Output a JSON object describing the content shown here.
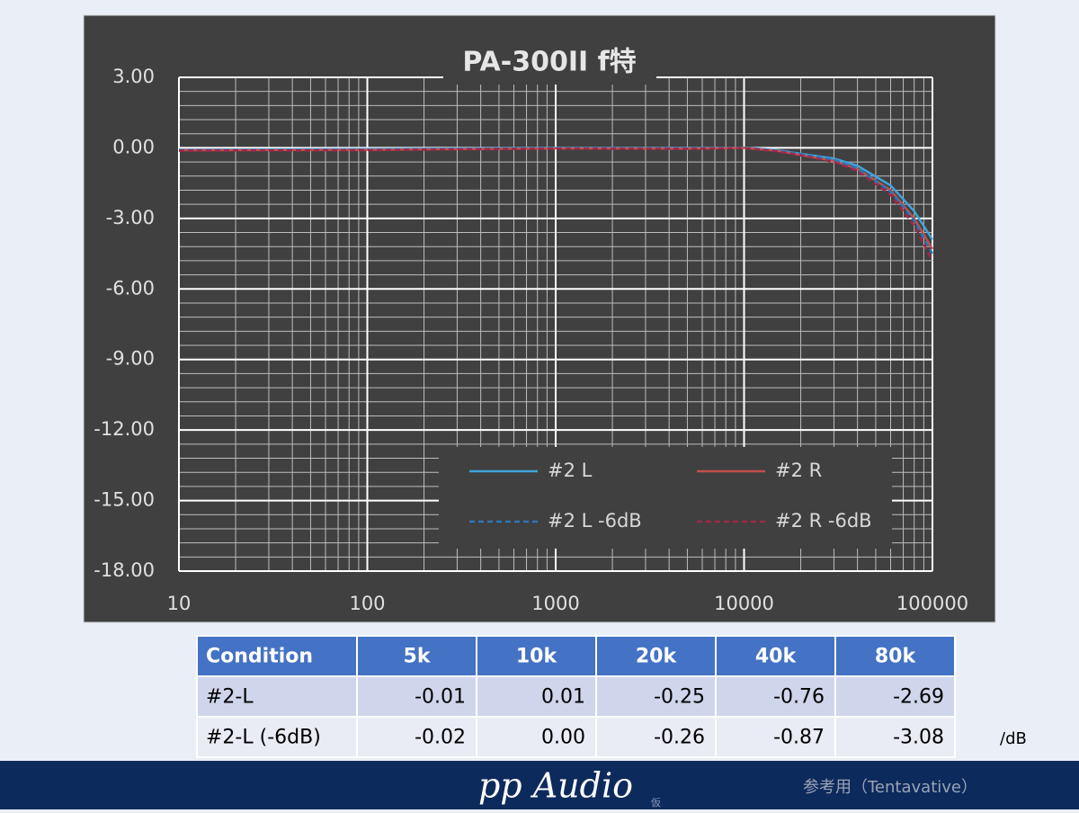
{
  "chart_data": {
    "type": "line",
    "title": "PA-300II f特",
    "x": [
      10,
      100,
      1000,
      5000,
      10000,
      15000,
      20000,
      30000,
      40000,
      60000,
      80000,
      100000
    ],
    "series": [
      {
        "name": "#2 L",
        "color": "#3fa3d8",
        "dash": false,
        "values": [
          -0.08,
          -0.05,
          0,
          -0.01,
          0.01,
          -0.1,
          -0.25,
          -0.45,
          -0.76,
          -1.6,
          -2.69,
          -3.9
        ]
      },
      {
        "name": "#2 R",
        "color": "#c0504d",
        "dash": false,
        "values": [
          -0.1,
          -0.08,
          -0.02,
          -0.03,
          0,
          -0.12,
          -0.3,
          -0.55,
          -0.9,
          -1.8,
          -3.0,
          -4.3
        ]
      },
      {
        "name": "#2 L -6dB",
        "color": "#2e75b6",
        "dash": true,
        "values": [
          -0.1,
          -0.08,
          -0.01,
          -0.02,
          0,
          -0.12,
          -0.26,
          -0.5,
          -0.87,
          -1.85,
          -3.08,
          -4.5
        ]
      },
      {
        "name": "#2 R -6dB",
        "color": "#a0284a",
        "dash": true,
        "values": [
          -0.12,
          -0.1,
          -0.03,
          -0.04,
          -0.01,
          -0.15,
          -0.32,
          -0.6,
          -0.98,
          -2.0,
          -3.3,
          -4.8
        ]
      }
    ],
    "xlim": [
      10,
      100000
    ],
    "xticks": [
      10,
      100,
      1000,
      10000,
      100000
    ],
    "xlog": true,
    "ylim": [
      -18,
      3
    ],
    "yticks": [
      {
        "value": -18,
        "label": "-18.00"
      },
      {
        "value": -15,
        "label": "-15.00"
      },
      {
        "value": -12,
        "label": "-12.00"
      },
      {
        "value": -9,
        "label": "-9.00"
      },
      {
        "value": -6,
        "label": "-6.00"
      },
      {
        "value": -3,
        "label": "-3.00"
      },
      {
        "value": 0,
        "label": "0.00"
      },
      {
        "value": 3,
        "label": "3.00"
      }
    ],
    "grid": true,
    "minor_grid": true,
    "legend": "lower right"
  },
  "table": {
    "header": [
      "Condition",
      "5k",
      "10k",
      "20k",
      "40k",
      "80k"
    ],
    "rows": [
      [
        "#2-L",
        "-0.01",
        "0.01",
        "-0.25",
        "-0.76",
        "-2.69"
      ],
      [
        "#2-L (-6dB)",
        "-0.02",
        "0.00",
        "-0.26",
        "-0.87",
        "-3.08"
      ]
    ],
    "unit": "/dB"
  },
  "footer": {
    "brand": "pp Audio",
    "mark": "仮",
    "note": "参考用（Tentavative）"
  }
}
